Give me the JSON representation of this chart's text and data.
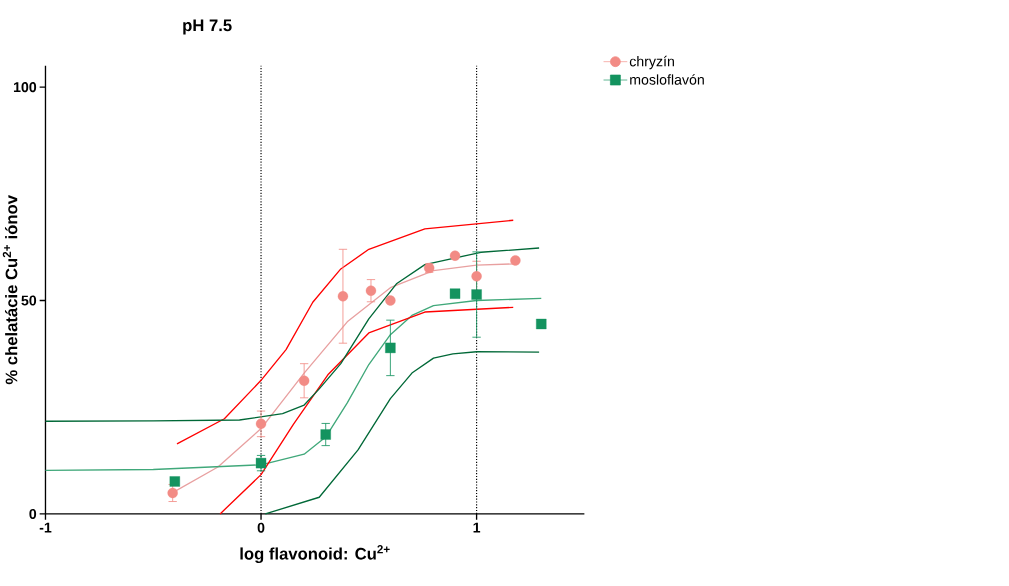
{
  "chart_data": {
    "type": "scatter",
    "title": "pH 7.5",
    "xlabel": "log flavonoid: Cu$^{2+}$",
    "ylabel": "% chelatácie Cu$^{2+}$ iónov",
    "xlim": [
      -1,
      1.5
    ],
    "ylim": [
      0,
      105
    ],
    "xticks": [
      -1,
      0,
      1
    ],
    "yticks": [
      0,
      50,
      100
    ],
    "grid": false,
    "legend": "top right",
    "ref_lines": [
      {
        "axis": "x",
        "value": 0,
        "color": "#000000",
        "line_style": "dotted"
      },
      {
        "axis": "x",
        "value": 1,
        "color": "#000000",
        "line_style": "dotted"
      }
    ],
    "series": [
      {
        "type": "line",
        "color": "#e8a0a0",
        "x": [
          -0.41,
          -0.2,
          0,
          0.2,
          0.4,
          0.6,
          0.8,
          1.0,
          1.18
        ],
        "values": [
          5,
          11,
          20,
          33,
          45,
          53,
          57,
          58.3,
          58.6
        ]
      },
      {
        "type": "line",
        "color": "#40a87a",
        "x": [
          -1,
          -0.5,
          0,
          0.2,
          0.3,
          0.4,
          0.5,
          0.6,
          0.7,
          0.8,
          1.0,
          1.3
        ],
        "values": [
          10.2,
          10.4,
          11.5,
          14,
          18,
          26,
          35,
          42,
          46.5,
          48.8,
          50,
          50.5
        ]
      },
      {
        "type": "line",
        "color": "#ff0000",
        "x": [
          -0.39,
          -0.17,
          0,
          0.116,
          0.24,
          0.37,
          0.5,
          0.76,
          1.17
        ],
        "values": [
          16.4,
          22.3,
          31.3,
          38.5,
          49.6,
          57.4,
          62,
          66.8,
          68.8
        ]
      },
      {
        "type": "line",
        "color": "#ff0000",
        "x": [
          -0.19,
          0,
          0.15,
          0.31,
          0.5,
          0.76,
          1.17
        ],
        "values": [
          0,
          9.2,
          21,
          32.6,
          42.4,
          47.3,
          48.4
        ]
      },
      {
        "type": "line",
        "color": "#006837",
        "x": [
          -1,
          -0.5,
          -0.1,
          0.1,
          0.2,
          0.27,
          0.37,
          0.5,
          0.63,
          0.76,
          1.02,
          1.29
        ],
        "values": [
          21.7,
          21.8,
          22,
          23.5,
          25.5,
          29.3,
          35.2,
          45.7,
          54,
          58.4,
          61.3,
          62.3
        ]
      },
      {
        "type": "line",
        "color": "#006837",
        "x": [
          0.02,
          0.27,
          0.45,
          0.6,
          0.7,
          0.8,
          0.89,
          1.0,
          1.29
        ],
        "values": [
          0,
          3.9,
          15,
          27,
          33,
          36.5,
          37.5,
          38,
          37.9
        ]
      },
      {
        "name": "chryzín",
        "color": "#f28b85",
        "marker": "circle",
        "x": [
          -0.41,
          0,
          0.2,
          0.38,
          0.51,
          0.6,
          0.78,
          0.9,
          1.0,
          1.18
        ],
        "values": [
          4.9,
          21.1,
          31.2,
          51,
          52.3,
          50,
          57.6,
          60.5,
          55.7,
          59.4
        ],
        "errors": [
          2,
          3,
          4,
          11,
          2.6,
          null,
          1,
          null,
          3.5,
          null
        ]
      },
      {
        "name": "mosloflavón",
        "color": "#13935f",
        "marker": "square",
        "x": [
          -0.4,
          0,
          0.3,
          0.6,
          0.9,
          1.0,
          1.3
        ],
        "values": [
          7.6,
          11.9,
          18.6,
          38.9,
          51.6,
          51.4,
          44.5
        ],
        "errors": [
          null,
          1.8,
          2.6,
          6.5,
          null,
          10,
          null
        ]
      }
    ]
  }
}
